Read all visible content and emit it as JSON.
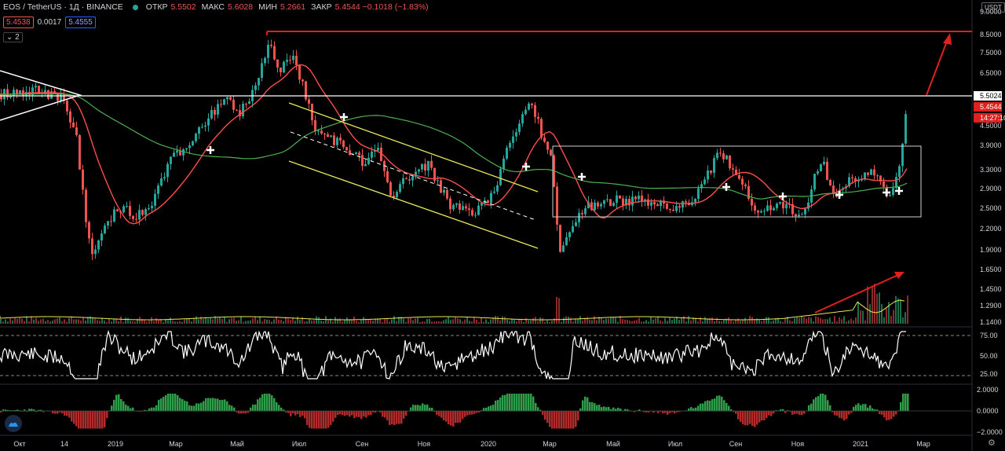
{
  "header": {
    "symbol": "EOS / TetherUS · 1Д · BINANCE",
    "open_label": "ОТКР",
    "open_value": "5.5502",
    "high_label": "МАКС",
    "high_value": "5.6028",
    "low_label": "МИН",
    "low_value": "5.2661",
    "close_label": "ЗАКР",
    "close_value": "5.4544 −0.1018 (−1.83%)",
    "bid": "5.4538",
    "spread": "0.0017",
    "ask": "5.4555",
    "collapse_label": "⌄ 2"
  },
  "currency": "USDT",
  "price_axis": [
    "9.0000",
    "8.5000",
    "7.5000",
    "6.5000",
    "5.5024",
    "5.4544",
    "14:27:10",
    "4.5000",
    "3.9000",
    "3.3000",
    "2.9000",
    "2.5000",
    "2.2000",
    "1.9000",
    "1.6500",
    "1.4500",
    "1.2900",
    "1.1400"
  ],
  "rsi_axis": [
    "75.00",
    "50.00",
    "25.00"
  ],
  "macd_axis": [
    "2.0000",
    "0.0000",
    "−2.0000"
  ],
  "time_axis": [
    "Окт",
    "14",
    "2019",
    "Мар",
    "Май",
    "Июл",
    "Сен",
    "Ноя",
    "2020",
    "Мар",
    "Май",
    "Июл",
    "Сен",
    "Ноя",
    "2021",
    "Мар"
  ],
  "colors": {
    "up": "#26a69a",
    "down": "#ef5350",
    "ma_fast": "#ff4d4d",
    "ma_slow": "#4caf50",
    "channel": "#e8e85a",
    "box": "#cfcfcf",
    "arrow": "#e0201e",
    "volume_ma": "#e8e85a"
  },
  "icons": {
    "logo": "tradingview-logo-icon",
    "settings": "gear-icon"
  }
}
